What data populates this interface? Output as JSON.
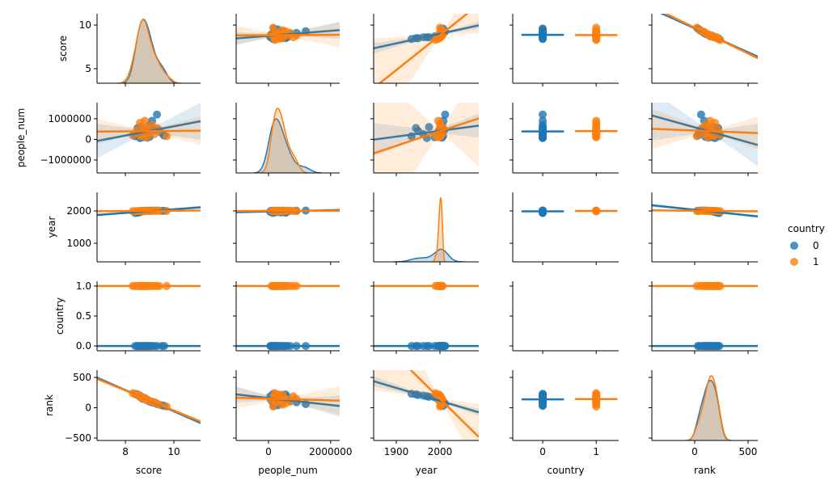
{
  "chart_data": {
    "type": "pairplot",
    "hue": "country",
    "legend": {
      "title": "country",
      "entries": [
        "0",
        "1"
      ],
      "placement": "right"
    },
    "colors": {
      "0": "#1f77b4",
      "1": "#ff7f0e"
    },
    "variables": [
      {
        "name": "score",
        "lim": [
          6.83,
          11.1
        ],
        "ylim": [
          3.33,
          11.3
        ],
        "xticks": [
          8,
          10
        ],
        "xticklabels": [
          "8",
          "10"
        ],
        "yticks": [
          5,
          10
        ],
        "yticklabels": [
          "5",
          "10"
        ]
      },
      {
        "name": "people_num",
        "lim": [
          -1040000,
          2290000
        ],
        "ylim": [
          -1630000,
          1780000
        ],
        "xticks": [
          0,
          2000000
        ],
        "xticklabels": [
          "0",
          "2000000"
        ],
        "yticks": [
          -1000000,
          0,
          1000000
        ],
        "yticklabels": [
          "−1000000",
          "0",
          "1000000"
        ]
      },
      {
        "name": "year",
        "lim": [
          1848,
          2089
        ],
        "ylim": [
          425,
          2575
        ],
        "xticks": [
          1900,
          2000
        ],
        "xticklabels": [
          "1900",
          "2000"
        ],
        "yticks": [
          1000,
          2000
        ],
        "yticklabels": [
          "1000",
          "2000"
        ]
      },
      {
        "name": "country",
        "lim": [
          -0.56,
          1.42
        ],
        "ylim": [
          -0.08,
          1.08
        ],
        "xticks": [
          0,
          1
        ],
        "xticklabels": [
          "0",
          "1"
        ],
        "yticks": [
          0,
          0.5,
          1
        ],
        "yticklabels": [
          "0.0",
          "0.5",
          "1.0"
        ]
      },
      {
        "name": "rank",
        "lim": [
          -401,
          591
        ],
        "ylim": [
          -540,
          620
        ],
        "xticks": [
          0,
          500
        ],
        "xticklabels": [
          "0",
          "500"
        ],
        "yticks": [
          -500,
          0,
          500
        ],
        "yticklabels": [
          "−500",
          "0",
          "500"
        ]
      }
    ],
    "groups": [
      {
        "name": "0",
        "score": [
          8.4,
          8.5,
          8.6,
          8.6,
          8.7,
          8.7,
          8.8,
          8.8,
          8.9,
          8.9,
          9.0,
          9.0,
          9.1,
          9.2,
          9.3,
          8.5,
          8.6,
          8.8,
          9.5,
          9.6
        ],
        "people_num": [
          150000,
          400000,
          250000,
          600000,
          100000,
          300000,
          200000,
          500000,
          350000,
          80000,
          700000,
          120000,
          900000,
          450000,
          1200000,
          550000,
          60000,
          250000,
          300000,
          180000
        ],
        "year": [
          1935,
          1950,
          1962,
          1975,
          1988,
          1995,
          1998,
          2000,
          2002,
          2004,
          2005,
          2006,
          2008,
          2010,
          2012,
          1945,
          1970,
          1999,
          2003,
          2007
        ],
        "country": [
          0,
          0,
          0,
          0,
          0,
          0,
          0,
          0,
          0,
          0,
          0,
          0,
          0,
          0,
          0,
          0,
          0,
          0,
          0,
          0
        ],
        "rank": [
          230,
          210,
          200,
          180,
          170,
          150,
          160,
          140,
          120,
          130,
          110,
          100,
          90,
          80,
          60,
          220,
          190,
          145,
          40,
          30
        ]
      },
      {
        "name": "1",
        "score": [
          8.3,
          8.4,
          8.5,
          8.6,
          8.6,
          8.7,
          8.7,
          8.8,
          8.8,
          8.9,
          8.9,
          9.0,
          9.1,
          9.2,
          9.3,
          8.6,
          8.7,
          8.8,
          9.4,
          9.7
        ],
        "people_num": [
          200000,
          300000,
          450000,
          250000,
          800000,
          150000,
          350000,
          500000,
          600000,
          300000,
          100000,
          400000,
          700000,
          250000,
          550000,
          200000,
          350000,
          900000,
          450000,
          150000
        ],
        "year": [
          1990,
          1995,
          1998,
          2000,
          2001,
          2002,
          2003,
          2004,
          2005,
          2006,
          1997,
          1999,
          2000,
          2002,
          2004,
          2001,
          2003,
          1996,
          2005,
          2000
        ],
        "country": [
          1,
          1,
          1,
          1,
          1,
          1,
          1,
          1,
          1,
          1,
          1,
          1,
          1,
          1,
          1,
          1,
          1,
          1,
          1,
          1
        ],
        "rank": [
          240,
          220,
          215,
          200,
          190,
          175,
          165,
          150,
          140,
          130,
          125,
          110,
          100,
          90,
          70,
          185,
          160,
          145,
          50,
          20
        ]
      }
    ],
    "offdiag": "regression scatter with confidence band",
    "diag": "kde"
  }
}
